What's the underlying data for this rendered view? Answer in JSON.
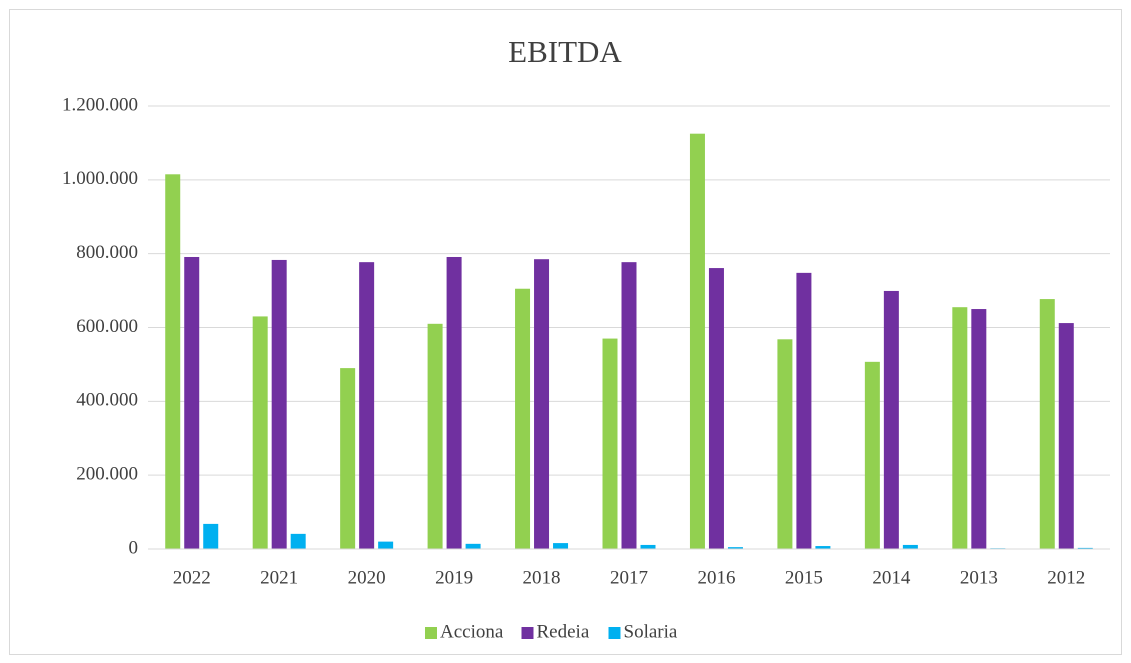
{
  "chart_data": {
    "type": "bar",
    "title": "EBITDA",
    "categories": [
      "2022",
      "2021",
      "2020",
      "2019",
      "2018",
      "2017",
      "2016",
      "2015",
      "2014",
      "2013",
      "2012"
    ],
    "series": [
      {
        "name": "Acciona",
        "color": "#92d050",
        "values": [
          1015000,
          630000,
          490000,
          610000,
          705000,
          570000,
          1125000,
          568000,
          507000,
          655000,
          677000
        ]
      },
      {
        "name": "Redeia",
        "color": "#7030a0",
        "values": [
          791000,
          783000,
          777000,
          791000,
          785000,
          777000,
          761000,
          748000,
          699000,
          650000,
          612000
        ]
      },
      {
        "name": "Solaria",
        "color": "#00b0f0",
        "values": [
          68000,
          41000,
          20000,
          14000,
          16000,
          11000,
          5000,
          8000,
          11000,
          2000,
          3000
        ]
      }
    ],
    "ylim": [
      0,
      1200000
    ],
    "yticks": [
      0,
      {
        "value": 200000,
        "label": "200.000"
      },
      {
        "value": 400000,
        "label": "400.000"
      },
      {
        "value": 600000,
        "label": "600.000"
      },
      {
        "value": 800000,
        "label": "800.000"
      },
      {
        "value": 1000000,
        "label": "1.000.000"
      },
      {
        "value": 1200000,
        "label": "1.200.000"
      }
    ],
    "grid": true,
    "legend": "bottom"
  }
}
